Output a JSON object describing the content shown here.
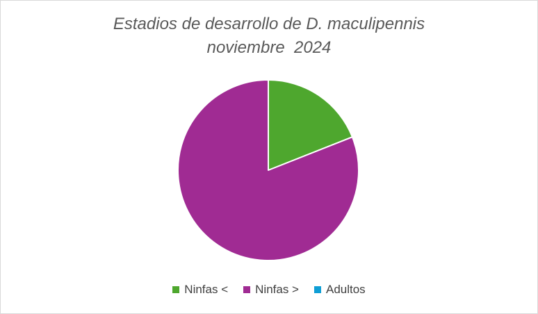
{
  "chart_data": {
    "type": "pie",
    "title_lines": [
      "Estadios de desarrollo de D. maculipennis",
      "noviembre  2024"
    ],
    "categories": [
      "Ninfas <",
      "Ninfas >",
      "Adultos"
    ],
    "values": [
      19,
      81,
      0
    ],
    "colors": [
      "#4ea72e",
      "#a02b93",
      "#0f9ed5"
    ],
    "legend_position": "bottom",
    "start_angle_deg": 0,
    "direction": "clockwise"
  }
}
